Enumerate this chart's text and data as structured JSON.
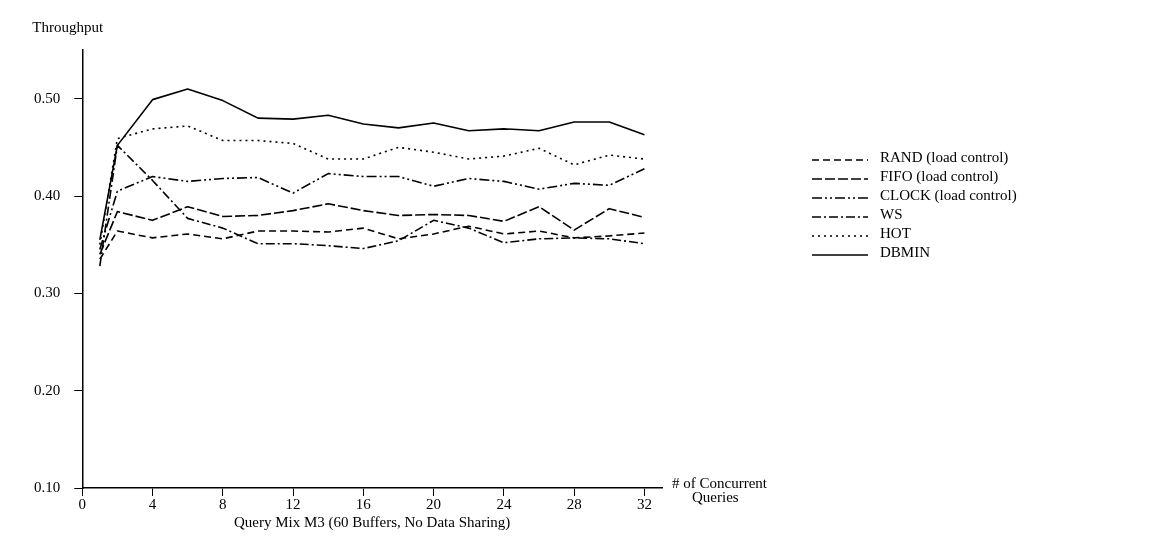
{
  "chart_data": {
    "type": "line",
    "ylabel": "Throughput",
    "xlabel": "# of Concurrent Queries",
    "annotations": [
      "Query Mix M3 (60 Buffers, No Data Sharing)"
    ],
    "x": [
      1,
      2,
      4,
      6,
      8,
      10,
      12,
      14,
      16,
      18,
      20,
      22,
      24,
      26,
      28,
      30,
      32
    ],
    "xlim": [
      0,
      33
    ],
    "xticks": [
      0,
      4,
      8,
      12,
      16,
      20,
      24,
      28,
      32
    ],
    "ylim": [
      0.1,
      0.55
    ],
    "yticks": [
      {
        "value": 0.1,
        "label": "0.10"
      },
      {
        "value": 0.2,
        "label": "0.20"
      },
      {
        "value": 0.3,
        "label": "0.30"
      },
      {
        "value": 0.4,
        "label": "0.40"
      },
      {
        "value": 0.5,
        "label": "0.50"
      }
    ],
    "legend": "right",
    "marker": "none",
    "series": [
      {
        "name": "RAND (load control)",
        "color": "#000000",
        "line_style": "dashed",
        "values": [
          0.335,
          0.364,
          0.357,
          0.361,
          0.356,
          0.364,
          0.364,
          0.363,
          0.367,
          0.356,
          0.361,
          0.369,
          0.361,
          0.364,
          0.357,
          0.359,
          0.362
        ]
      },
      {
        "name": "FIFO (load control)",
        "color": "#000000",
        "line_style": "longdash",
        "values": [
          0.34,
          0.384,
          0.375,
          0.389,
          0.379,
          0.38,
          0.385,
          0.392,
          0.385,
          0.38,
          0.381,
          0.38,
          0.374,
          0.389,
          0.365,
          0.387,
          0.378
        ]
      },
      {
        "name": "CLOCK (load control)",
        "color": "#000000",
        "line_style": "dashdotdot",
        "values": [
          0.345,
          0.405,
          0.42,
          0.415,
          0.418,
          0.419,
          0.403,
          0.423,
          0.42,
          0.42,
          0.41,
          0.418,
          0.415,
          0.407,
          0.413,
          0.411,
          0.428
        ]
      },
      {
        "name": "WS",
        "color": "#000000",
        "line_style": "dashdot",
        "values": [
          0.328,
          0.452,
          0.416,
          0.377,
          0.367,
          0.351,
          0.351,
          0.349,
          0.346,
          0.354,
          0.375,
          0.367,
          0.352,
          0.356,
          0.357,
          0.356,
          0.351
        ]
      },
      {
        "name": "HOT",
        "color": "#000000",
        "line_style": "dotted",
        "values": [
          0.35,
          0.459,
          0.469,
          0.472,
          0.457,
          0.457,
          0.454,
          0.438,
          0.438,
          0.45,
          0.445,
          0.438,
          0.441,
          0.449,
          0.432,
          0.442,
          0.438
        ]
      },
      {
        "name": "DBMIN",
        "color": "#000000",
        "line_style": "solid",
        "values": [
          0.355,
          0.452,
          0.499,
          0.51,
          0.498,
          0.48,
          0.479,
          0.483,
          0.474,
          0.47,
          0.475,
          0.467,
          0.469,
          0.467,
          0.476,
          0.476,
          0.463
        ]
      }
    ]
  }
}
